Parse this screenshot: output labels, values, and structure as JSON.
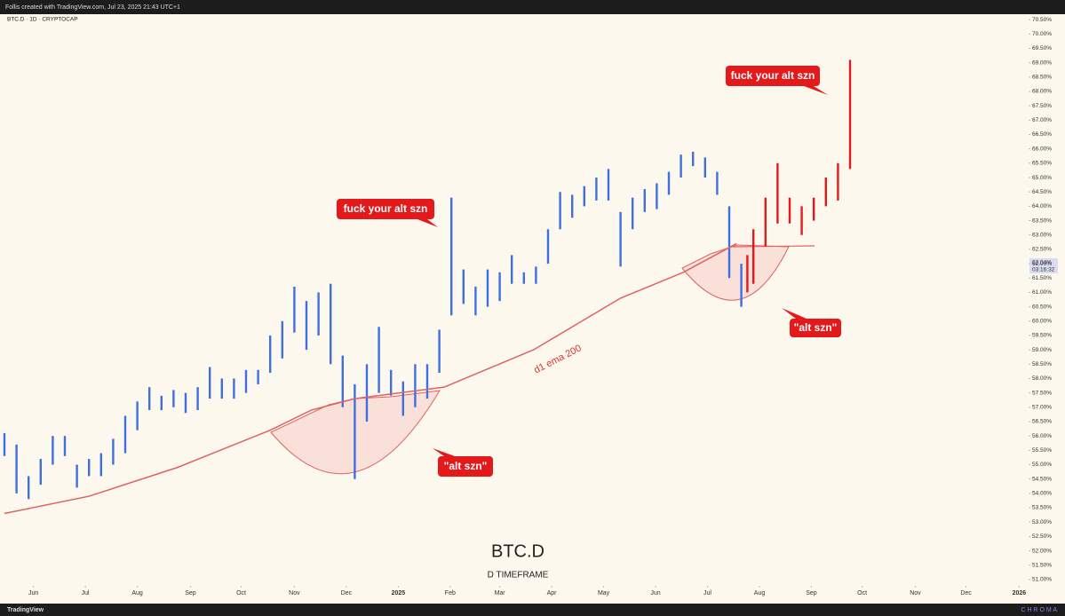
{
  "header": {
    "credit": "Follis created with TradingView.com, Jul 23, 2025 21:43 UTC+1",
    "symbol": "BTC.D · 1D · CRYPTOCAP"
  },
  "chart_data": {
    "type": "ohlc-range",
    "title": "BTC.D",
    "subtitle": "D TIMEFRAME",
    "xlim": [
      0,
      84
    ],
    "xticks": [
      {
        "value": 2.4,
        "label": "Jun"
      },
      {
        "value": 6.7,
        "label": "Jul"
      },
      {
        "value": 11.0,
        "label": "Aug"
      },
      {
        "value": 15.4,
        "label": "Sep"
      },
      {
        "value": 19.6,
        "label": "Oct"
      },
      {
        "value": 24.0,
        "label": "Nov"
      },
      {
        "value": 28.3,
        "label": "Dec"
      },
      {
        "value": 32.6,
        "label": "2025"
      },
      {
        "value": 36.9,
        "label": "Feb"
      },
      {
        "value": 41.0,
        "label": "Mar"
      },
      {
        "value": 45.3,
        "label": "Apr"
      },
      {
        "value": 49.6,
        "label": "May"
      },
      {
        "value": 53.9,
        "label": "Jun"
      },
      {
        "value": 58.2,
        "label": "Jul"
      },
      {
        "value": 62.5,
        "label": "Aug"
      },
      {
        "value": 66.8,
        "label": "Sep"
      },
      {
        "value": 71.0,
        "label": "Oct"
      },
      {
        "value": 75.4,
        "label": "Nov"
      },
      {
        "value": 79.6,
        "label": "Dec"
      },
      {
        "value": 84.0,
        "label": "2026"
      }
    ],
    "ylim": [
      50.78,
      70.69
    ],
    "yticks": [
      {
        "value": 51.0,
        "label": "51.00%"
      },
      {
        "value": 51.5,
        "label": "51.50%"
      },
      {
        "value": 52.0,
        "label": "52.00%"
      },
      {
        "value": 52.5,
        "label": "52.50%"
      },
      {
        "value": 53.0,
        "label": "53.00%"
      },
      {
        "value": 53.5,
        "label": "53.50%"
      },
      {
        "value": 54.0,
        "label": "54.00%"
      },
      {
        "value": 54.5,
        "label": "54.50%"
      },
      {
        "value": 55.0,
        "label": "55.00%"
      },
      {
        "value": 55.5,
        "label": "55.50%"
      },
      {
        "value": 56.0,
        "label": "56.00%"
      },
      {
        "value": 56.5,
        "label": "56.50%"
      },
      {
        "value": 57.0,
        "label": "57.00%"
      },
      {
        "value": 57.5,
        "label": "57.50%"
      },
      {
        "value": 58.0,
        "label": "58.00%"
      },
      {
        "value": 58.5,
        "label": "58.50%"
      },
      {
        "value": 59.0,
        "label": "59.00%"
      },
      {
        "value": 59.5,
        "label": "59.50%"
      },
      {
        "value": 60.0,
        "label": "60.00%"
      },
      {
        "value": 60.5,
        "label": "60.50%"
      },
      {
        "value": 61.0,
        "label": "61.00%"
      },
      {
        "value": 61.5,
        "label": "61.50%"
      },
      {
        "value": 62.0,
        "label": "62.00%"
      },
      {
        "value": 62.5,
        "label": "62.50%"
      },
      {
        "value": 63.0,
        "label": "63.00%"
      },
      {
        "value": 63.5,
        "label": "63.50%"
      },
      {
        "value": 64.0,
        "label": "64.00%"
      },
      {
        "value": 64.5,
        "label": "64.50%"
      },
      {
        "value": 65.0,
        "label": "65.00%"
      },
      {
        "value": 65.5,
        "label": "65.50%"
      },
      {
        "value": 66.0,
        "label": "66.00%"
      },
      {
        "value": 66.5,
        "label": "66.50%"
      },
      {
        "value": 67.0,
        "label": "67.00%"
      },
      {
        "value": 67.5,
        "label": "67.50%"
      },
      {
        "value": 68.0,
        "label": "68.00%"
      },
      {
        "value": 68.5,
        "label": "68.50%"
      },
      {
        "value": 69.0,
        "label": "69.00%"
      },
      {
        "value": 69.5,
        "label": "69.50%"
      },
      {
        "value": 70.0,
        "label": "70.00%"
      },
      {
        "value": 70.5,
        "label": "70.50%"
      }
    ],
    "series": [
      {
        "color": "#3f6fe0",
        "x": [
          0,
          1,
          2,
          3,
          4,
          5,
          6,
          7,
          8,
          9,
          10,
          11,
          12,
          13,
          14,
          15,
          16,
          17,
          18,
          19,
          20,
          21,
          22,
          23,
          24,
          25,
          26,
          27,
          28,
          29,
          30,
          31,
          32,
          33,
          34,
          35,
          36,
          37,
          38,
          39,
          40,
          41,
          42,
          43,
          44,
          45,
          46,
          47,
          48,
          49,
          50,
          51,
          52,
          53,
          54,
          55,
          56,
          57,
          58,
          59,
          60,
          61
        ],
        "highs": [
          56.1,
          55.7,
          54.6,
          55.2,
          56.0,
          56.0,
          55.0,
          55.2,
          55.4,
          55.9,
          56.7,
          57.2,
          57.7,
          57.4,
          57.6,
          57.5,
          57.7,
          58.4,
          58.0,
          58.0,
          58.3,
          58.3,
          59.5,
          60.0,
          61.2,
          60.7,
          61.0,
          61.3,
          58.8,
          57.8,
          58.5,
          59.8,
          58.3,
          57.9,
          58.5,
          58.5,
          59.7,
          64.3,
          61.8,
          61.2,
          61.8,
          61.7,
          62.3,
          61.7,
          61.9,
          63.2,
          64.5,
          64.4,
          64.7,
          65.0,
          65.3,
          63.8,
          64.3,
          64.6,
          64.8,
          65.2,
          65.8,
          65.9,
          65.7,
          65.2,
          64.0,
          62.0
        ],
        "lows": [
          55.3,
          54.0,
          53.8,
          54.3,
          55.0,
          55.3,
          54.2,
          54.6,
          54.6,
          55.0,
          55.4,
          56.2,
          56.9,
          56.9,
          57.0,
          56.8,
          56.9,
          57.3,
          57.3,
          57.3,
          57.5,
          57.8,
          58.2,
          58.7,
          59.6,
          59.0,
          59.5,
          58.5,
          57.0,
          54.5,
          56.5,
          57.5,
          57.4,
          56.7,
          57.0,
          57.3,
          58.2,
          60.2,
          60.6,
          60.2,
          60.5,
          60.7,
          61.3,
          61.3,
          61.3,
          62.0,
          63.2,
          63.6,
          64.0,
          64.2,
          64.2,
          61.9,
          63.2,
          63.8,
          63.9,
          64.4,
          65.0,
          65.4,
          65.0,
          64.4,
          61.5,
          60.5
        ]
      },
      {
        "color": "#e3191c",
        "x": [
          61.5,
          62,
          63,
          64,
          65,
          66,
          67,
          68,
          69,
          70
        ],
        "highs": [
          62.3,
          63.2,
          64.3,
          65.5,
          64.3,
          64.0,
          64.3,
          65.0,
          65.5,
          69.1
        ],
        "lows": [
          61.0,
          61.3,
          62.6,
          63.4,
          63.4,
          63.0,
          63.5,
          64.0,
          64.2,
          65.3
        ]
      },
      {
        "name": "d1 ema 200",
        "color": "#e06262",
        "x": [
          0,
          7,
          14.3,
          22,
          25.4,
          29,
          36.4,
          43.8,
          51,
          56.2,
          60.6
        ],
        "values": [
          53.3,
          53.9,
          54.9,
          56.2,
          56.9,
          57.3,
          57.7,
          59.0,
          60.8,
          61.7,
          62.7
        ]
      }
    ],
    "annotations": [
      "fuck your alt szn",
      "fuck your alt szn",
      "\"alt szn\"",
      "\"alt szn\""
    ],
    "last_price": "62.04%",
    "countdown": "03:16:32"
  },
  "footer": {
    "brand": "TradingView",
    "watermark": "C H R O M A"
  }
}
